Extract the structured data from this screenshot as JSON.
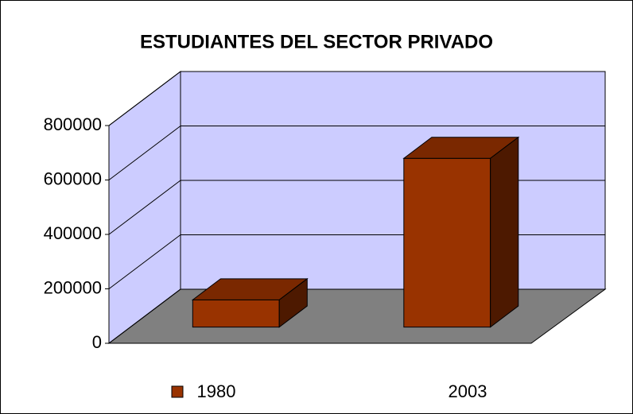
{
  "chart_data": {
    "type": "bar",
    "title": "ESTUDIANTES DEL SECTOR PRIVADO",
    "categories": [
      "1980",
      "2003"
    ],
    "values": [
      100000,
      620000
    ],
    "color": "#993300",
    "ylim": [
      0,
      800000
    ],
    "yticks": [
      0,
      200000,
      400000,
      600000,
      800000
    ],
    "grid": true
  }
}
